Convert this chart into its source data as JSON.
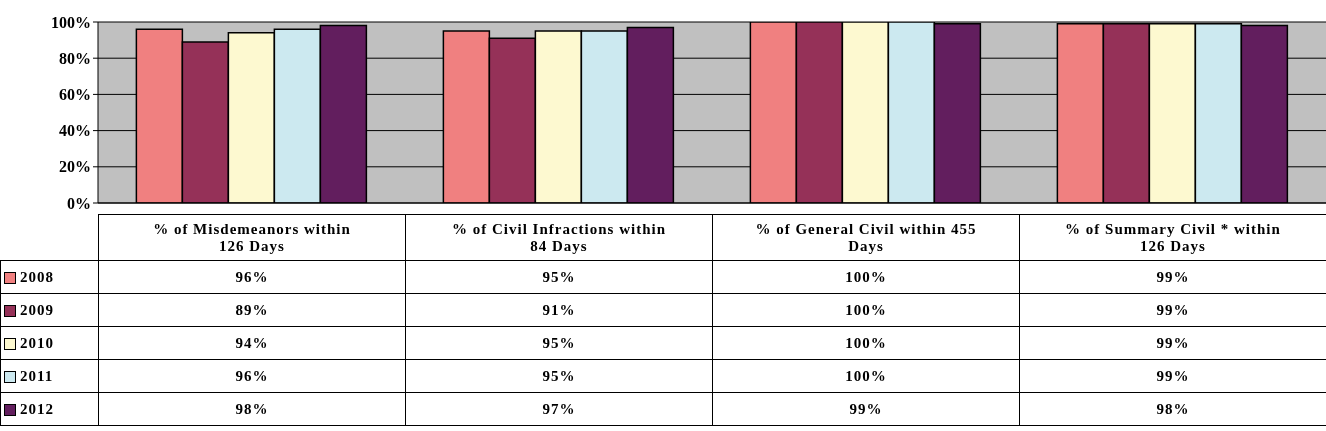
{
  "chart_data": {
    "type": "bar",
    "categories": [
      "% of Misdemeanors within 126 Days",
      "% of Civil Infractions within 84 Days",
      "% of General Civil within 455 Days",
      "% of Summary Civil * within 126 Days"
    ],
    "series": [
      {
        "name": "2008",
        "color": "#f08080",
        "values": [
          96,
          95,
          100,
          99
        ],
        "value_labels": [
          "96%",
          "95%",
          "100%",
          "99%"
        ]
      },
      {
        "name": "2009",
        "color": "#953158",
        "values": [
          89,
          91,
          100,
          99
        ],
        "value_labels": [
          "89%",
          "91%",
          "100%",
          "99%"
        ]
      },
      {
        "name": "2010",
        "color": "#fdf9d0",
        "values": [
          94,
          95,
          100,
          99
        ],
        "value_labels": [
          "94%",
          "95%",
          "100%",
          "99%"
        ]
      },
      {
        "name": "2011",
        "color": "#cce9f0",
        "values": [
          96,
          95,
          100,
          99
        ],
        "value_labels": [
          "96%",
          "95%",
          "100%",
          "99%"
        ]
      },
      {
        "name": "2012",
        "color": "#621e5e",
        "values": [
          98,
          97,
          99,
          98
        ],
        "value_labels": [
          "98%",
          "97%",
          "99%",
          "98%"
        ]
      }
    ],
    "ylim": [
      0,
      100
    ],
    "yticks": [
      {
        "value": 0,
        "label": "0%"
      },
      {
        "value": 20,
        "label": "20%"
      },
      {
        "value": 40,
        "label": "40%"
      },
      {
        "value": 60,
        "label": "60%"
      },
      {
        "value": 80,
        "label": "80%"
      },
      {
        "value": 100,
        "label": "100%"
      }
    ],
    "grid": "y",
    "legend": "bottom left"
  }
}
